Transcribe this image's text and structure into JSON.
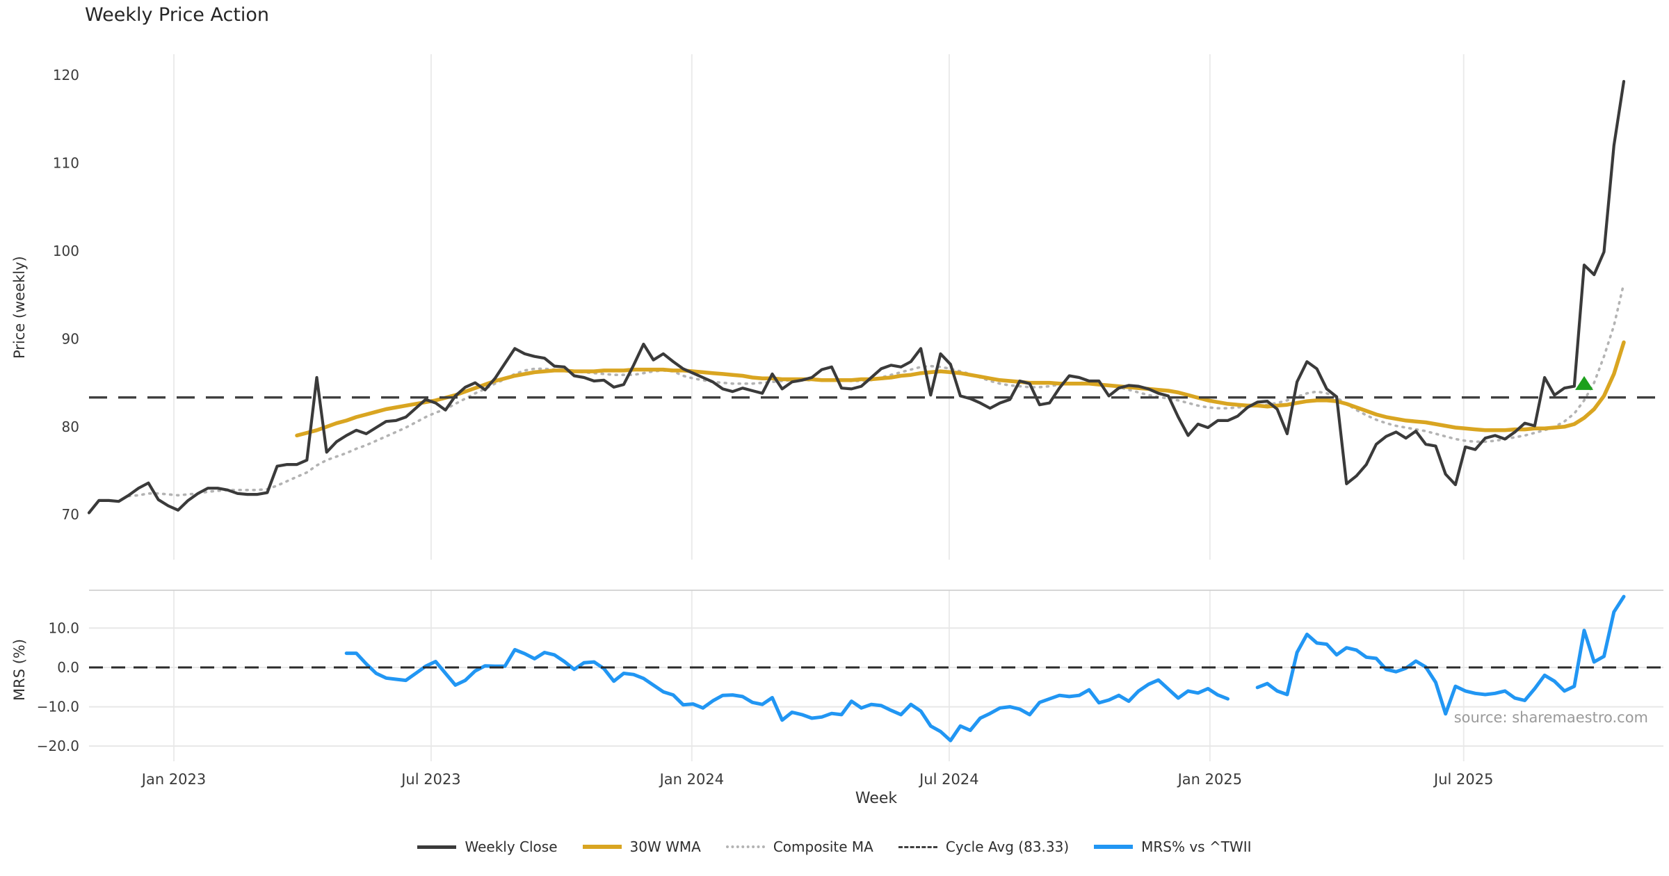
{
  "title": "Weekly Price Action",
  "source_note": "source: sharemaestro.com",
  "colors": {
    "weekly_close": "#3a3a3a",
    "wma_30w": "#d9a521",
    "composite_ma": "#b3b3b3",
    "cycle_avg": "#3f3f3f",
    "mrs_line": "#2196f3",
    "signal_marker": "#1ca01c",
    "gridline": "#ebebeb",
    "panel_spine": "#c9c9c9",
    "tick_text": "#3a3a3a",
    "source_text": "#9a9a9a"
  },
  "legend": {
    "items": [
      {
        "label": "Weekly Close",
        "color": "#3a3a3a",
        "style": "solid",
        "thickness": 5
      },
      {
        "label": "30W WMA",
        "color": "#d9a521",
        "style": "solid",
        "thickness": 6
      },
      {
        "label": "Composite MA",
        "color": "#b3b3b3",
        "style": "dotted",
        "thickness": 4
      },
      {
        "label": "Cycle Avg (83.33)",
        "color": "#3f3f3f",
        "style": "dashed",
        "thickness": 3
      },
      {
        "label": "MRS% vs ^TWII",
        "color": "#2196f3",
        "style": "solid",
        "thickness": 6
      }
    ]
  },
  "chart_data": [
    {
      "type": "line",
      "panel": "price",
      "ylabel": "Price (weekly)",
      "ylim": [
        64.87,
        122.39
      ],
      "yticks": [
        {
          "value": 70,
          "label": "70"
        },
        {
          "value": 80,
          "label": "80"
        },
        {
          "value": 90,
          "label": "90"
        },
        {
          "value": 100,
          "label": "100"
        },
        {
          "value": 110,
          "label": "110"
        },
        {
          "value": 120,
          "label": "120"
        }
      ],
      "x_unit": "week_index",
      "x_total_weeks": 155,
      "xticks": [
        {
          "week": 8.57,
          "label": "Jan 2023"
        },
        {
          "week": 34.55,
          "label": "Jul 2023"
        },
        {
          "week": 60.88,
          "label": "Jan 2024"
        },
        {
          "week": 86.87,
          "label": "Jul 2024"
        },
        {
          "week": 113.2,
          "label": "Jan 2025"
        },
        {
          "week": 138.83,
          "label": "Jul 2025"
        }
      ],
      "grid": "vertical-only",
      "series": [
        {
          "name": "Composite MA",
          "color": "#b3b3b3",
          "style": "dotted",
          "width": 3.6,
          "start_week": 4,
          "values": [
            72.1,
            72.2,
            72.4,
            72.4,
            72.3,
            72.2,
            72.3,
            72.4,
            72.6,
            72.7,
            72.8,
            72.8,
            72.8,
            72.8,
            72.9,
            73.3,
            73.8,
            74.3,
            74.8,
            75.6,
            76.2,
            76.6,
            77.0,
            77.5,
            77.9,
            78.4,
            78.9,
            79.4,
            79.9,
            80.5,
            81.1,
            81.6,
            82.0,
            82.6,
            83.2,
            83.8,
            84.3,
            84.9,
            85.4,
            86.0,
            86.4,
            86.6,
            86.6,
            86.5,
            86.4,
            86.3,
            86.2,
            86.1,
            86.0,
            85.9,
            85.9,
            85.9,
            86.1,
            86.3,
            86.4,
            86.3,
            85.8,
            85.5,
            85.3,
            85.1,
            85.0,
            84.9,
            84.9,
            84.9,
            85.0,
            85.1,
            85.2,
            85.3,
            85.3,
            85.3,
            85.3,
            85.3,
            85.3,
            85.2,
            85.2,
            85.3,
            85.6,
            85.9,
            86.2,
            86.5,
            86.8,
            86.9,
            86.8,
            86.6,
            86.3,
            86.0,
            85.6,
            85.2,
            84.9,
            84.7,
            84.6,
            84.5,
            84.5,
            84.6,
            84.8,
            84.9,
            85.0,
            85.0,
            84.9,
            84.7,
            84.5,
            84.2,
            83.9,
            83.6,
            83.4,
            83.2,
            83.0,
            82.7,
            82.4,
            82.2,
            82.1,
            82.1,
            82.2,
            82.3,
            82.4,
            82.5,
            82.7,
            83.0,
            83.4,
            83.8,
            84.0,
            83.8,
            83.3,
            82.6,
            81.9,
            81.3,
            80.8,
            80.4,
            80.1,
            79.9,
            79.7,
            79.5,
            79.2,
            78.9,
            78.6,
            78.4,
            78.3,
            78.3,
            78.4,
            78.6,
            78.8,
            79.0,
            79.3,
            79.6,
            80.0,
            80.6,
            81.5,
            83.0,
            85.0,
            88.0,
            91.5,
            96.3
          ]
        },
        {
          "name": "30W WMA",
          "color": "#d9a521",
          "style": "solid",
          "width": 5.5,
          "start_week": 21,
          "values": [
            79.0,
            79.3,
            79.6,
            80.0,
            80.4,
            80.7,
            81.1,
            81.4,
            81.7,
            82.0,
            82.2,
            82.4,
            82.6,
            82.8,
            83.0,
            83.3,
            83.6,
            84.0,
            84.4,
            84.8,
            85.2,
            85.5,
            85.8,
            86.0,
            86.2,
            86.3,
            86.4,
            86.4,
            86.3,
            86.3,
            86.3,
            86.4,
            86.4,
            86.4,
            86.5,
            86.5,
            86.5,
            86.5,
            86.4,
            86.4,
            86.3,
            86.2,
            86.1,
            86.0,
            85.9,
            85.8,
            85.6,
            85.5,
            85.5,
            85.4,
            85.4,
            85.4,
            85.4,
            85.3,
            85.3,
            85.3,
            85.3,
            85.4,
            85.4,
            85.5,
            85.6,
            85.8,
            85.9,
            86.1,
            86.2,
            86.3,
            86.2,
            86.1,
            85.9,
            85.7,
            85.5,
            85.3,
            85.2,
            85.1,
            85.0,
            85.0,
            85.0,
            84.9,
            84.9,
            84.9,
            84.9,
            84.8,
            84.7,
            84.6,
            84.5,
            84.4,
            84.3,
            84.2,
            84.1,
            83.9,
            83.6,
            83.3,
            83.0,
            82.8,
            82.6,
            82.5,
            82.4,
            82.4,
            82.3,
            82.4,
            82.5,
            82.7,
            82.9,
            83.0,
            83.0,
            82.9,
            82.6,
            82.2,
            81.8,
            81.4,
            81.1,
            80.9,
            80.7,
            80.6,
            80.5,
            80.3,
            80.1,
            79.9,
            79.8,
            79.7,
            79.6,
            79.6,
            79.6,
            79.7,
            79.7,
            79.8,
            79.8,
            79.9,
            80.0,
            80.3,
            81.0,
            82.0,
            83.5,
            86.0,
            89.6
          ]
        },
        {
          "name": "Weekly Close",
          "color": "#3a3a3a",
          "style": "solid",
          "width": 4.2,
          "start_week": 0,
          "values": [
            70.2,
            71.6,
            71.6,
            71.5,
            72.2,
            73.0,
            73.6,
            71.7,
            71.0,
            70.5,
            71.6,
            72.4,
            73.0,
            73.0,
            72.8,
            72.4,
            72.3,
            72.3,
            72.5,
            75.5,
            75.7,
            75.7,
            76.2,
            85.6,
            77.1,
            78.3,
            79.0,
            79.6,
            79.2,
            79.9,
            80.6,
            80.7,
            81.1,
            82.1,
            83.1,
            82.7,
            81.9,
            83.5,
            84.5,
            85.0,
            84.2,
            85.5,
            87.2,
            88.9,
            88.3,
            88.0,
            87.8,
            86.9,
            86.8,
            85.8,
            85.6,
            85.2,
            85.3,
            84.5,
            84.8,
            87.0,
            89.4,
            87.6,
            88.3,
            87.4,
            86.6,
            86.1,
            85.6,
            85.1,
            84.3,
            84.0,
            84.4,
            84.1,
            83.8,
            86.0,
            84.3,
            85.1,
            85.3,
            85.6,
            86.5,
            86.8,
            84.4,
            84.3,
            84.6,
            85.6,
            86.6,
            87.0,
            86.8,
            87.4,
            88.9,
            83.6,
            88.3,
            87.1,
            83.5,
            83.2,
            82.7,
            82.1,
            82.7,
            83.1,
            85.2,
            84.9,
            82.5,
            82.7,
            84.4,
            85.8,
            85.6,
            85.2,
            85.2,
            83.5,
            84.4,
            84.7,
            84.6,
            84.3,
            83.8,
            83.5,
            81.1,
            79.0,
            80.3,
            79.9,
            80.7,
            80.7,
            81.2,
            82.2,
            82.8,
            82.9,
            82.0,
            79.2,
            85.1,
            87.4,
            86.6,
            84.3,
            83.4,
            73.5,
            74.4,
            75.7,
            78.0,
            78.9,
            79.4,
            78.7,
            79.5,
            78.0,
            77.8,
            74.6,
            73.4,
            77.7,
            77.4,
            78.7,
            79.0,
            78.6,
            79.4,
            80.4,
            80.1,
            85.6,
            83.6,
            84.4,
            84.6,
            98.4,
            97.3,
            99.9,
            112.0,
            119.3
          ]
        },
        {
          "name": "Cycle Avg (83.33)",
          "color": "#3f3f3f",
          "style": "dashed",
          "width": 3.4,
          "hline": 83.33
        }
      ],
      "markers": [
        {
          "shape": "triangle-up",
          "color": "#1ca01c",
          "week": 151,
          "value": 84.9
        }
      ]
    },
    {
      "type": "line",
      "panel": "mrs",
      "ylabel": "MRS (%)",
      "xlabel": "Week",
      "ylim": [
        -23.86,
        19.61
      ],
      "yticks": [
        {
          "value": 10,
          "label": "10.0"
        },
        {
          "value": 0,
          "label": "0.0"
        },
        {
          "value": -10,
          "label": "−10.0"
        },
        {
          "value": -20,
          "label": "−20.0"
        }
      ],
      "grid": "both",
      "series": [
        {
          "name": "MRS% vs ^TWII",
          "color": "#2196f3",
          "style": "solid",
          "width": 5,
          "start_week": 26,
          "values": [
            3.6,
            3.6,
            0.9,
            -1.5,
            -2.7,
            -3.0,
            -3.3,
            -1.5,
            0.3,
            1.5,
            -1.5,
            -4.5,
            -3.3,
            -0.9,
            0.4,
            0.3,
            0.3,
            4.5,
            3.5,
            2.2,
            3.8,
            3.2,
            1.5,
            -0.5,
            1.2,
            1.4,
            -0.3,
            -3.5,
            -1.5,
            -1.8,
            -2.8,
            -4.5,
            -6.2,
            -7.0,
            -9.5,
            -9.3,
            -10.3,
            -8.5,
            -7.1,
            -7.0,
            -7.4,
            -8.9,
            -9.4,
            -7.7,
            -13.4,
            -11.4,
            -12.0,
            -12.9,
            -12.6,
            -11.7,
            -12.0,
            -8.6,
            -10.3,
            -9.4,
            -9.7,
            -10.9,
            -12.0,
            -9.4,
            -11.1,
            -14.9,
            -16.3,
            -18.6,
            -14.9,
            -16.0,
            -12.9,
            -11.7,
            -10.3,
            -10.0,
            -10.6,
            -12.0,
            -8.9,
            -8.0,
            -7.1,
            -7.4,
            -7.1,
            -5.7,
            -9.0,
            -8.3,
            -7.1,
            -8.6,
            -6.0,
            -4.3,
            -3.2,
            -5.5,
            -7.8,
            -6.0,
            -6.5,
            -5.4,
            -7.0,
            -8.0,
            null,
            null,
            -5.1,
            -4.1,
            -6.0,
            -6.9,
            3.8,
            8.4,
            6.2,
            5.9,
            3.2,
            5.0,
            4.4,
            2.6,
            2.3,
            -0.5,
            -1.1,
            -0.2,
            1.6,
            0.1,
            -3.8,
            -11.8,
            -4.8,
            -6.0,
            -6.6,
            -6.9,
            -6.6,
            -6.0,
            -7.8,
            -8.4,
            -5.4,
            -2.0,
            -3.5,
            -6.0,
            -4.8,
            9.4,
            1.4,
            2.8,
            14.1,
            18.0
          ]
        },
        {
          "name": "zero-line",
          "color": "#2b2b2b",
          "style": "dashed",
          "width": 3,
          "hline": 0
        }
      ]
    }
  ]
}
